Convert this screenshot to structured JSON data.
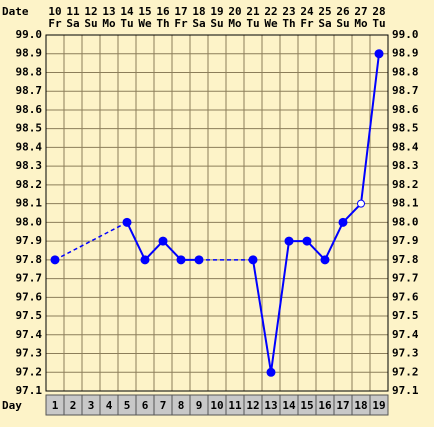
{
  "chart_data": {
    "type": "line",
    "date_label": "Date",
    "day_label": "Day",
    "dates": [
      10,
      11,
      12,
      13,
      14,
      15,
      16,
      17,
      18,
      19,
      20,
      21,
      22,
      23,
      24,
      25,
      26,
      27,
      28
    ],
    "weekdays": [
      "Fr",
      "Sa",
      "Su",
      "Mo",
      "Tu",
      "We",
      "Th",
      "Fr",
      "Sa",
      "Su",
      "Mo",
      "Tu",
      "We",
      "Th",
      "Fr",
      "Sa",
      "Su",
      "Mo",
      "Tu"
    ],
    "x": [
      1,
      2,
      3,
      4,
      5,
      6,
      7,
      8,
      9,
      10,
      11,
      12,
      13,
      14,
      15,
      16,
      17,
      18,
      19
    ],
    "series": [
      {
        "color": "#0000ff",
        "values": [
          97.8,
          null,
          null,
          null,
          98.0,
          97.8,
          97.9,
          97.8,
          97.8,
          null,
          null,
          97.8,
          97.2,
          97.9,
          97.9,
          97.8,
          98.0,
          98.1,
          98.9
        ],
        "open_markers": [
          17
        ]
      }
    ],
    "ylim": [
      97.1,
      99.0
    ],
    "yticks": [
      {
        "value": 99.0,
        "label": "99.0"
      },
      98.9,
      98.8,
      98.7,
      98.6,
      98.5,
      98.4,
      98.3,
      98.2,
      98.1,
      {
        "value": 98.0,
        "label": "98.0"
      },
      97.9,
      97.8,
      97.7,
      97.6,
      97.5,
      97.4,
      97.3,
      97.2,
      97.1
    ],
    "grid": true,
    "background": "#fdf3c8"
  }
}
